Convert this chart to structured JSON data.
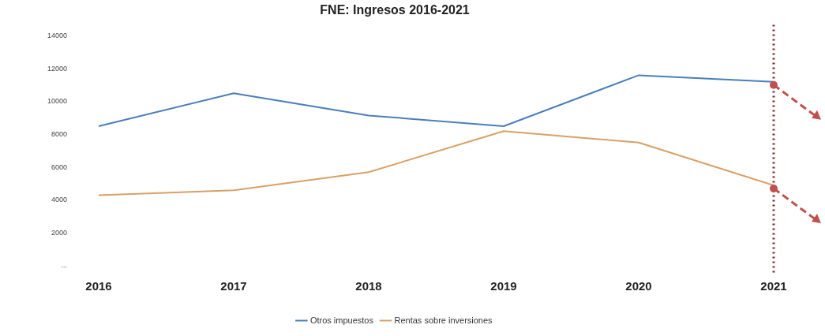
{
  "chart_data": {
    "type": "line",
    "title": "FNE: Ingresos 2016-2021",
    "categories": [
      "2016",
      "2017",
      "2018",
      "2019",
      "2020",
      "2021"
    ],
    "series": [
      {
        "name": "Otros impuestos",
        "color": "#4a7ebb",
        "values": [
          8500,
          10500,
          9150,
          8500,
          11600,
          11200
        ]
      },
      {
        "name": "Rentas sobre inversiones",
        "color": "#d9a066",
        "values": [
          4300,
          4600,
          5700,
          8200,
          7500,
          4900
        ]
      }
    ],
    "ylim": [
      0,
      14000
    ],
    "yticks": [
      {
        "value": 0,
        "label": "..."
      },
      2000,
      4000,
      6000,
      8000,
      10000,
      12000,
      14000
    ],
    "ref_lines": [
      {
        "axis": "x",
        "value": "2021",
        "color": "#7b2a2a",
        "line_style": "dotted"
      }
    ],
    "grid": false,
    "legend": "bottom",
    "marker": "none",
    "line_style": "solid"
  }
}
